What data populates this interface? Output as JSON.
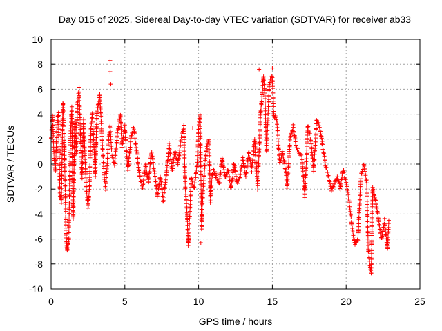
{
  "chart_data": {
    "type": "scatter",
    "title": "Day 015 of 2025, Sidereal Day-to-day VTEC variation (SDTVAR) for receiver ab33",
    "xlabel": "GPS time / hours",
    "ylabel": "SDTVAR / TECUs",
    "xlim": [
      0,
      25
    ],
    "ylim": [
      -10,
      10
    ],
    "xticks": [
      0,
      5,
      10,
      15,
      20,
      25
    ],
    "yticks": [
      -10,
      -8,
      -6,
      -4,
      -2,
      0,
      2,
      4,
      6,
      8,
      10
    ],
    "grid": true,
    "marker": "+",
    "color": "#ff0000",
    "series": [
      {
        "name": "SDTVAR",
        "trace": [
          [
            0.0,
            2.0
          ],
          [
            0.1,
            3.8
          ],
          [
            0.2,
            0.5
          ],
          [
            0.3,
            -0.5
          ],
          [
            0.4,
            3.2
          ],
          [
            0.5,
            4.2
          ],
          [
            0.6,
            -2.5
          ],
          [
            0.7,
            -3.0
          ],
          [
            0.8,
            5.0
          ],
          [
            0.9,
            1.5
          ],
          [
            1.0,
            -5.0
          ],
          [
            1.05,
            -6.5
          ],
          [
            1.1,
            -6.8
          ],
          [
            1.2,
            -6.0
          ],
          [
            1.3,
            2.0
          ],
          [
            1.4,
            4.5
          ],
          [
            1.5,
            -4.5
          ],
          [
            1.6,
            3.5
          ],
          [
            1.7,
            1.0
          ],
          [
            1.8,
            5.0
          ],
          [
            1.9,
            6.0
          ],
          [
            2.0,
            2.0
          ],
          [
            2.1,
            -1.0
          ],
          [
            2.2,
            3.5
          ],
          [
            2.3,
            0.5
          ],
          [
            2.4,
            -2.0
          ],
          [
            2.5,
            -3.5
          ],
          [
            2.6,
            -2.0
          ],
          [
            2.7,
            3.0
          ],
          [
            2.8,
            4.0
          ],
          [
            3.0,
            -1.0
          ],
          [
            3.1,
            4.0
          ],
          [
            3.3,
            5.5
          ],
          [
            3.5,
            1.0
          ],
          [
            3.6,
            -1.0
          ],
          [
            3.7,
            -2.0
          ],
          [
            3.8,
            0.0
          ],
          [
            3.9,
            2.0
          ],
          [
            4.0,
            3.0
          ],
          [
            4.1,
            1.0
          ],
          [
            4.3,
            0.0
          ],
          [
            4.5,
            2.5
          ],
          [
            4.7,
            4.0
          ],
          [
            4.8,
            1.5
          ],
          [
            5.0,
            3.0
          ],
          [
            5.2,
            -0.5
          ],
          [
            5.4,
            2.0
          ],
          [
            5.6,
            3.0
          ],
          [
            5.8,
            1.0
          ],
          [
            6.0,
            -1.0
          ],
          [
            6.2,
            -2.0
          ],
          [
            6.4,
            0.0
          ],
          [
            6.6,
            -1.5
          ],
          [
            6.8,
            1.0
          ],
          [
            7.0,
            -0.5
          ],
          [
            7.2,
            -2.5
          ],
          [
            7.4,
            -1.0
          ],
          [
            7.6,
            -3.0
          ],
          [
            7.8,
            -1.0
          ],
          [
            8.0,
            1.5
          ],
          [
            8.2,
            -0.5
          ],
          [
            8.4,
            1.0
          ],
          [
            8.6,
            0.0
          ],
          [
            8.8,
            2.0
          ],
          [
            9.0,
            3.0
          ],
          [
            9.1,
            -2.0
          ],
          [
            9.2,
            -3.5
          ],
          [
            9.3,
            -6.5
          ],
          [
            9.4,
            -4.0
          ],
          [
            9.5,
            -1.0
          ],
          [
            9.7,
            -2.0
          ],
          [
            9.9,
            0.0
          ],
          [
            10.0,
            3.0
          ],
          [
            10.1,
            4.0
          ],
          [
            10.2,
            -5.0
          ],
          [
            10.3,
            -2.0
          ],
          [
            10.5,
            1.0
          ],
          [
            10.7,
            2.0
          ],
          [
            10.8,
            -3.0
          ],
          [
            10.9,
            -1.0
          ],
          [
            11.0,
            -0.5
          ],
          [
            11.2,
            -1.0
          ],
          [
            11.4,
            -1.5
          ],
          [
            11.6,
            0.5
          ],
          [
            11.8,
            -1.0
          ],
          [
            12.0,
            -0.5
          ],
          [
            12.2,
            -2.0
          ],
          [
            12.4,
            0.0
          ],
          [
            12.6,
            -1.5
          ],
          [
            12.8,
            -1.0
          ],
          [
            13.0,
            0.5
          ],
          [
            13.2,
            -1.0
          ],
          [
            13.4,
            1.0
          ],
          [
            13.6,
            -0.5
          ],
          [
            13.8,
            2.0
          ],
          [
            14.0,
            -2.0
          ],
          [
            14.2,
            4.0
          ],
          [
            14.4,
            7.0
          ],
          [
            14.5,
            5.5
          ],
          [
            14.6,
            1.0
          ],
          [
            14.8,
            6.5
          ],
          [
            15.0,
            7.0
          ],
          [
            15.1,
            4.0
          ],
          [
            15.3,
            3.5
          ],
          [
            15.5,
            0.0
          ],
          [
            15.7,
            1.0
          ],
          [
            15.9,
            -0.5
          ],
          [
            16.0,
            -2.0
          ],
          [
            16.2,
            2.0
          ],
          [
            16.4,
            3.0
          ],
          [
            16.6,
            1.5
          ],
          [
            17.0,
            0.5
          ],
          [
            17.2,
            -2.5
          ],
          [
            17.4,
            3.0
          ],
          [
            17.6,
            2.0
          ],
          [
            17.8,
            -0.5
          ],
          [
            18.0,
            3.5
          ],
          [
            18.2,
            3.0
          ],
          [
            18.4,
            1.5
          ],
          [
            18.6,
            0.0
          ],
          [
            18.8,
            -1.0
          ],
          [
            19.0,
            -2.0
          ],
          [
            19.2,
            -1.5
          ],
          [
            19.4,
            -1.0
          ],
          [
            19.6,
            -2.0
          ],
          [
            19.8,
            -0.5
          ],
          [
            20.0,
            -1.5
          ],
          [
            20.2,
            -3.0
          ],
          [
            20.4,
            -5.0
          ],
          [
            20.6,
            -6.5
          ],
          [
            20.8,
            -6.0
          ],
          [
            21.0,
            -1.0
          ],
          [
            21.2,
            0.0
          ],
          [
            21.4,
            -1.5
          ],
          [
            21.5,
            -7.0
          ],
          [
            21.7,
            -8.8
          ],
          [
            21.8,
            -2.0
          ],
          [
            22.0,
            -3.0
          ],
          [
            22.2,
            -4.5
          ],
          [
            22.4,
            -6.0
          ],
          [
            22.6,
            -4.5
          ],
          [
            22.8,
            -6.8
          ],
          [
            22.9,
            -4.5
          ]
        ],
        "isolated_points": [
          [
            4.0,
            8.3
          ],
          [
            4.0,
            7.4
          ],
          [
            4.05,
            6.4
          ],
          [
            9.6,
            2.9
          ],
          [
            10.15,
            -6.3
          ],
          [
            10.2,
            -5.2
          ],
          [
            14.1,
            7.6
          ],
          [
            15.0,
            7.7
          ]
        ]
      }
    ]
  }
}
